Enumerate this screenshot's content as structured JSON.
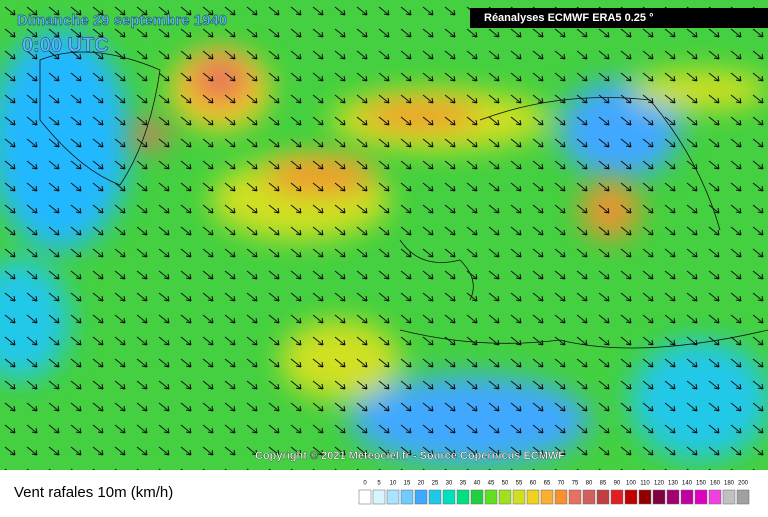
{
  "header": {
    "date": "Dimanche 29 septembre 1940",
    "time": "0:00 UTC",
    "source": "Réanalyses ECMWF ERA5 0.25 °"
  },
  "copyright": "Copyright © 2021 Meteociel.fr - Source Copernicus ECMWF",
  "legend": {
    "title": "Vent rafales 10m (km/h)",
    "labels": [
      0,
      5,
      10,
      15,
      20,
      25,
      30,
      35,
      40,
      45,
      50,
      55,
      60,
      65,
      70,
      75,
      80,
      85,
      90,
      100,
      110,
      120,
      130,
      140,
      150,
      160,
      180,
      200
    ],
    "colors": [
      "#ffffff",
      "#d8f4ff",
      "#a8e4ff",
      "#70ccff",
      "#3fa8ff",
      "#20c8e8",
      "#00e0c0",
      "#00e080",
      "#20d040",
      "#60e020",
      "#a0e020",
      "#d0e020",
      "#f0d020",
      "#f8b030",
      "#f89030",
      "#e87060",
      "#d06060",
      "#c04040",
      "#e02020",
      "#c00000",
      "#900000",
      "#800040",
      "#a00070",
      "#c000a0",
      "#e000c0",
      "#f040e0",
      "#c0c0c0",
      "#a0a0a0"
    ]
  }
}
